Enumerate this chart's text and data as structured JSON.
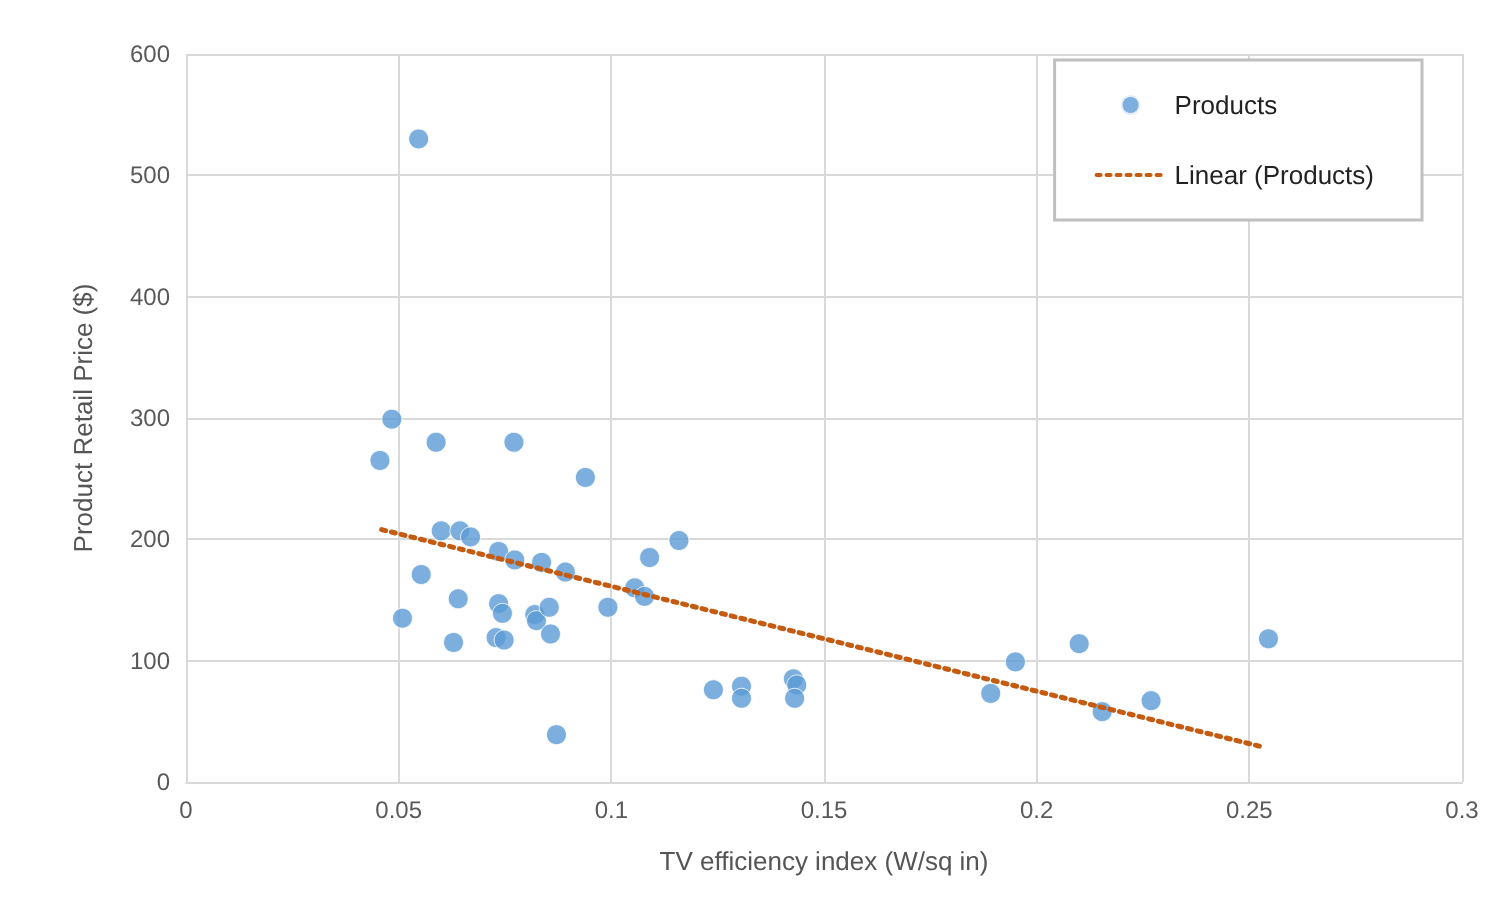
{
  "chart_data": {
    "type": "scatter",
    "xlabel": "TV efficiency index (W/sq in)",
    "ylabel": "Product Retail Price ($)",
    "xlim": [
      0,
      0.3
    ],
    "xticks": [
      0,
      0.05,
      0.1,
      0.15,
      0.2,
      0.25,
      0.3
    ],
    "ylim": [
      0,
      600
    ],
    "yticks": [
      0,
      100,
      200,
      300,
      400,
      500,
      600
    ],
    "grid": true,
    "legend": "top right",
    "series": [
      {
        "name": "Products",
        "marker": "circle",
        "color": "#5b9bd5",
        "x": [
          0.0547,
          0.0484,
          0.0456,
          0.0588,
          0.0771,
          0.0939,
          0.06,
          0.0644,
          0.0669,
          0.0553,
          0.0735,
          0.0773,
          0.0836,
          0.0892,
          0.064,
          0.0509,
          0.0735,
          0.0744,
          0.082,
          0.0824,
          0.0854,
          0.0857,
          0.0729,
          0.0748,
          0.0629,
          0.0871,
          0.0992,
          0.1055,
          0.1078,
          0.109,
          0.1159,
          0.124,
          0.1306,
          0.1306,
          0.1428,
          0.1436,
          0.1431,
          0.1892,
          0.195,
          0.21,
          0.2154,
          0.2269,
          0.2545
        ],
        "values": [
          530,
          299,
          265,
          280,
          280,
          251,
          207,
          207,
          202,
          171,
          190,
          183,
          181,
          173,
          151,
          135,
          147,
          139,
          138,
          133,
          144,
          122,
          119,
          117,
          115,
          39,
          144,
          160,
          153,
          185,
          199,
          76,
          79,
          69,
          85,
          80,
          69,
          73,
          99,
          114,
          58,
          67,
          118
        ]
      },
      {
        "name": "Linear (Products)",
        "type": "line",
        "marker": "none",
        "line_style": "dotted",
        "color": "#c55a11",
        "x": [
          0.046,
          0.253
        ],
        "values": [
          208,
          29
        ]
      }
    ]
  }
}
